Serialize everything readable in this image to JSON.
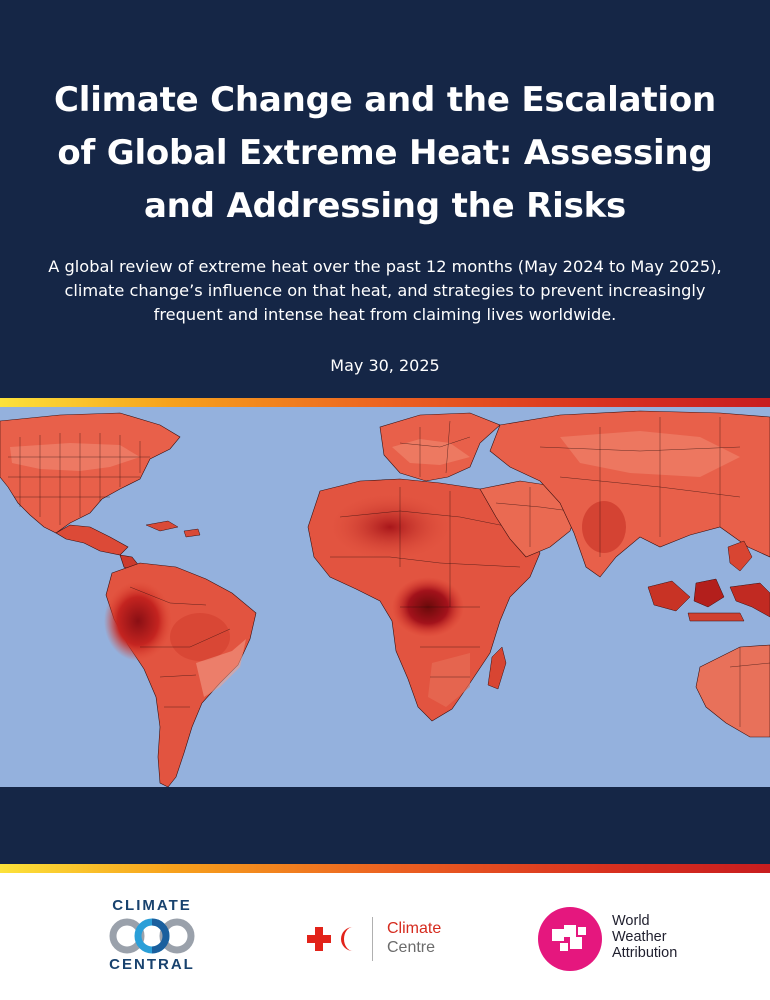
{
  "header": {
    "title": "Climate Change and the Escalation of Global Extreme Heat: Assessing and Addressing the Risks",
    "subtitle": "A global review of extreme heat over the past 12 months (May 2024 to May 2025), climate change’s influence on that heat, and strategies to prevent increasingly frequent and intense heat from claiming lives worldwide.",
    "date": "May 30, 2025"
  },
  "colors": {
    "navy": "#152646",
    "ocean": "#94b1dd",
    "heat_light": "#f4a08c",
    "heat_mid": "#e8553f",
    "heat_dark": "#b81d1d",
    "heat_extreme": "#6b0a0a"
  },
  "logos": {
    "climate_central": {
      "line1": "CLIMATE",
      "line2": "CENTRAL",
      "icon": "interlocking-rings-icon"
    },
    "red_cross": {
      "line1": "Climate",
      "line2": "Centre",
      "icon": "red-cross-crescent-icon"
    },
    "wwa": {
      "line1": "World",
      "line2": "Weather",
      "line3": "Attribution",
      "icon": "wwa-pixel-icon"
    }
  }
}
